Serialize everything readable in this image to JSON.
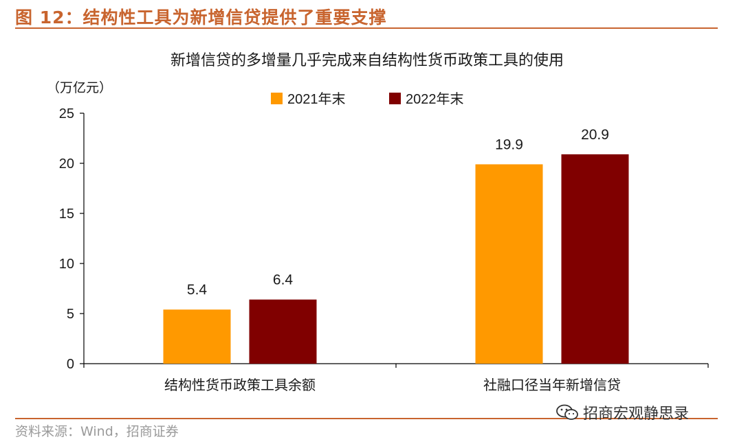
{
  "figure": {
    "title": "图 12：结构性工具为新增信贷提供了重要支撑",
    "source": "资料来源：Wind，招商证券",
    "watermark": "招商宏观静思录",
    "accent_color": "#C8642E"
  },
  "chart_data": {
    "type": "bar",
    "title": "新增信贷的多增量几乎完成来自结构性货币政策工具的使用",
    "unit_label": "（万亿元）",
    "categories": [
      "结构性货币政策工具余额",
      "社融口径当年新增信贷"
    ],
    "series": [
      {
        "name": "2021年末",
        "color": "#FF9900",
        "values": [
          5.4,
          19.9
        ]
      },
      {
        "name": "2022年末",
        "color": "#800000",
        "values": [
          6.4,
          20.9
        ]
      }
    ],
    "data_labels": [
      [
        "5.4",
        "19.9"
      ],
      [
        "6.4",
        "20.9"
      ]
    ],
    "ylim": [
      0,
      25
    ],
    "yticks": [
      0,
      5,
      10,
      15,
      20,
      25
    ],
    "grid": false,
    "legend_position": "top-center"
  }
}
